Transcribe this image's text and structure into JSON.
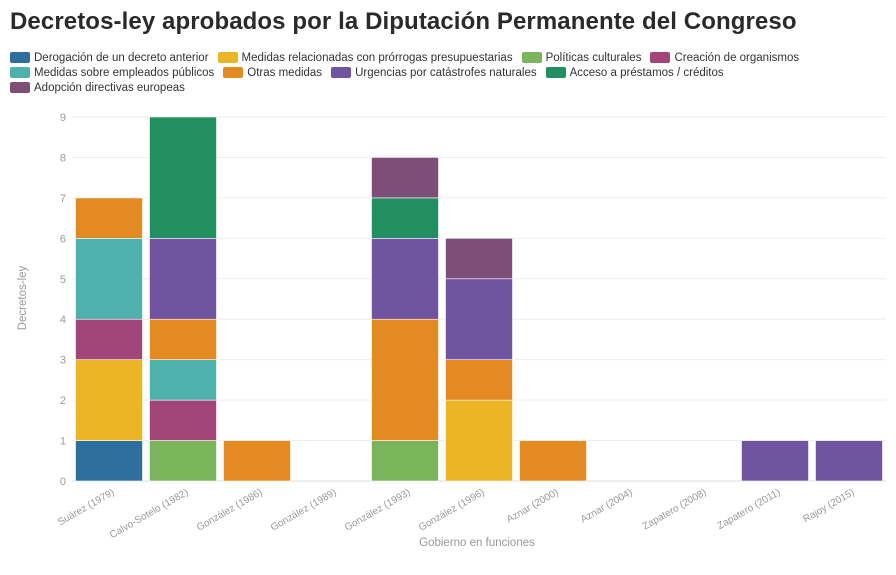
{
  "chart_data": {
    "type": "bar",
    "stacked": true,
    "title": "Decretos-ley aprobados por la Diputación Permanente del Congreso",
    "xlabel": "Gobierno en funciones",
    "ylabel": "Decretos-ley",
    "ylim": [
      0,
      9
    ],
    "yticks": [
      "0",
      "1",
      "2",
      "3",
      "4",
      "5",
      "6",
      "7",
      "8",
      "9"
    ],
    "grid": true,
    "legend_position": "top",
    "categories": [
      "Suárez (1979)",
      "Calvo-Sotelo (1982)",
      "González (1986)",
      "González (1989)",
      "González (1993)",
      "González (1996)",
      "Aznar (2000)",
      "Aznar (2004)",
      "Zapatero (2008)",
      "Zapatero (2011)",
      "Rajoy (2015)"
    ],
    "legend_rows": [
      [
        "Derogación de un decreto anterior",
        "Medidas relacionadas con prórrogas presupuestarias",
        "Políticas culturales",
        "Creación de organismos"
      ],
      [
        "Medidas sobre empleados públicos",
        "Otras medidas",
        "Urgencias por catástrofes naturales",
        "Acceso a préstamos / créditos"
      ],
      [
        "Adopción directivas europeas"
      ]
    ],
    "series": [
      {
        "name": "Derogación de un decreto anterior",
        "color": "#2e6f9e",
        "values": [
          1,
          0,
          0,
          0,
          0,
          0,
          0,
          0,
          0,
          0,
          0
        ]
      },
      {
        "name": "Medidas relacionadas con prórrogas presupuestarias",
        "color": "#ecb526",
        "values": [
          2,
          0,
          0,
          0,
          0,
          2,
          0,
          0,
          0,
          0,
          0
        ]
      },
      {
        "name": "Políticas culturales",
        "color": "#7ab55c",
        "values": [
          0,
          1,
          0,
          0,
          1,
          0,
          0,
          0,
          0,
          0,
          0
        ]
      },
      {
        "name": "Creación de organismos",
        "color": "#a2467a",
        "values": [
          1,
          1,
          0,
          0,
          0,
          0,
          0,
          0,
          0,
          0,
          0
        ]
      },
      {
        "name": "Medidas sobre empleados públicos",
        "color": "#4fb1ab",
        "values": [
          2,
          1,
          0,
          0,
          0,
          0,
          0,
          0,
          0,
          0,
          0
        ]
      },
      {
        "name": "Otras medidas",
        "color": "#e48a22",
        "values": [
          1,
          1,
          1,
          0,
          3,
          1,
          1,
          0,
          0,
          0,
          0
        ]
      },
      {
        "name": "Urgencias por catástrofes naturales",
        "color": "#6f55a0",
        "values": [
          0,
          2,
          0,
          0,
          2,
          2,
          0,
          0,
          0,
          1,
          1
        ]
      },
      {
        "name": "Acceso a préstamos / créditos",
        "color": "#228f60",
        "values": [
          0,
          3,
          0,
          0,
          1,
          0,
          0,
          0,
          0,
          0,
          0
        ]
      },
      {
        "name": "Adopción directivas europeas",
        "color": "#7e4e78",
        "values": [
          0,
          0,
          0,
          0,
          1,
          1,
          0,
          0,
          0,
          0,
          0
        ]
      }
    ]
  }
}
